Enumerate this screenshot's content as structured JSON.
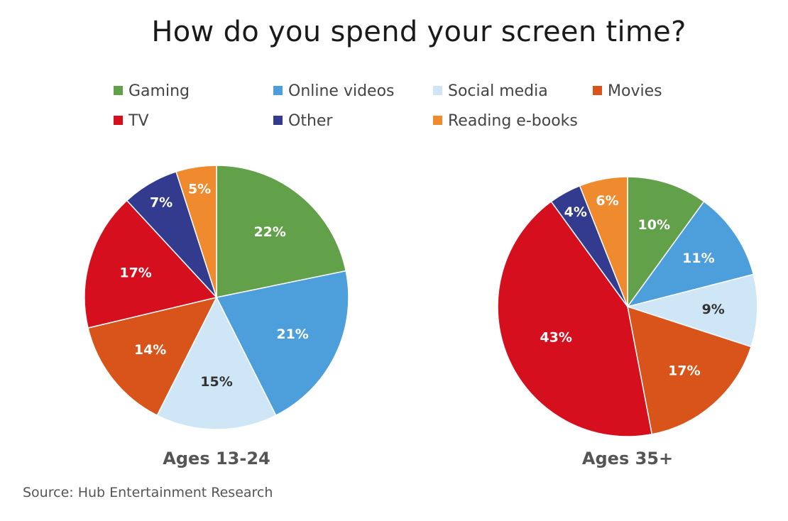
{
  "title": "How do you spend your screen time?",
  "source": "Source: Hub Entertainment Research",
  "legend": [
    {
      "label": "Gaming",
      "color": "#62a04a"
    },
    {
      "label": "Online videos",
      "color": "#4c9fdb"
    },
    {
      "label": "Social media",
      "color": "#cfe6f6"
    },
    {
      "label": "Movies",
      "color": "#d8541a"
    },
    {
      "label": "TV",
      "color": "#d50f1e"
    },
    {
      "label": "Other",
      "color": "#323b8e"
    },
    {
      "label": "Reading e-books",
      "color": "#f08a2e"
    }
  ],
  "chart_data": [
    {
      "type": "pie",
      "title": "Ages 13-24",
      "labels": [
        "Gaming",
        "Online videos",
        "Social media",
        "Movies",
        "TV",
        "Other",
        "Reading e-books"
      ],
      "values": [
        22,
        21,
        15,
        14,
        17,
        7,
        5
      ],
      "value_labels": [
        "22%",
        "21%",
        "15%",
        "14%",
        "17%",
        "7%",
        "5%"
      ]
    },
    {
      "type": "pie",
      "title": "Ages 35+",
      "labels": [
        "Gaming",
        "Online videos",
        "Social media",
        "Movies",
        "TV",
        "Other",
        "Reading e-books"
      ],
      "values": [
        10,
        11,
        9,
        17,
        43,
        4,
        6
      ],
      "value_labels": [
        "10%",
        "11%",
        "9%",
        "17%",
        "43%",
        "4%",
        "6%"
      ]
    }
  ]
}
